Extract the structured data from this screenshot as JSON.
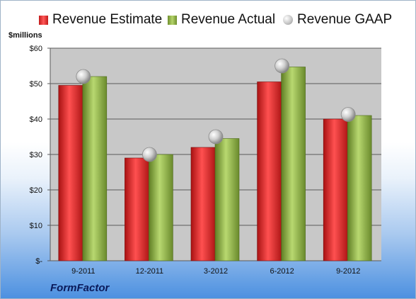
{
  "legend": {
    "estimate": "Revenue Estimate",
    "actual": "Revenue Actual",
    "gaap": "Revenue GAAP"
  },
  "unit_label": "$millions",
  "company": "FormFactor",
  "colors": {
    "estimate": "#d42a2a",
    "actual": "#93b54a",
    "gaap": "#b0b0b0",
    "plot_background": "#c8c8c8"
  },
  "chart_data": {
    "type": "bar",
    "categories": [
      "9-2011",
      "12-2011",
      "3-2012",
      "6-2012",
      "9-2012"
    ],
    "series": [
      {
        "name": "Revenue Estimate",
        "values": [
          49.5,
          29.0,
          32.0,
          50.5,
          40.0
        ]
      },
      {
        "name": "Revenue Actual",
        "values": [
          52.0,
          30.0,
          34.5,
          54.7,
          41.0
        ]
      },
      {
        "name": "Revenue GAAP",
        "values": [
          52.0,
          30.0,
          35.0,
          55.0,
          41.3
        ]
      }
    ],
    "ylabel": "$millions",
    "ylim": [
      0,
      60
    ],
    "yticks": [
      0,
      10,
      20,
      30,
      40,
      50,
      60
    ],
    "ytick_labels": [
      "$-",
      "$10",
      "$20",
      "$30",
      "$40",
      "$50",
      "$60"
    ],
    "grid": true,
    "legend_position": "top"
  }
}
